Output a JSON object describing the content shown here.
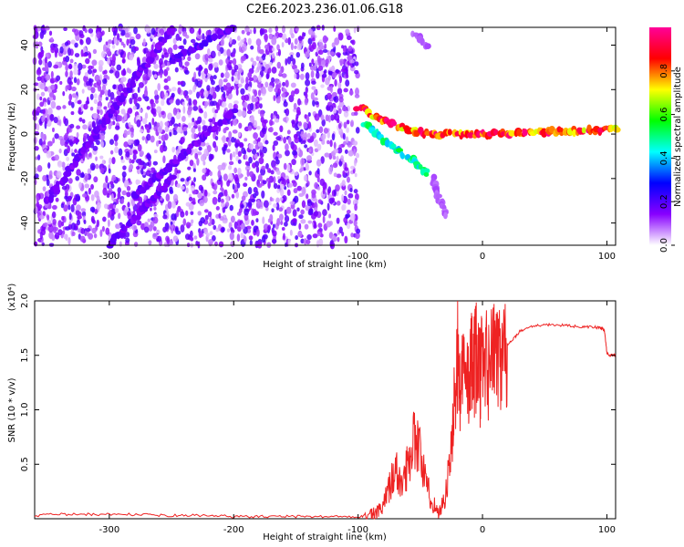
{
  "title": "C2E6.2023.236.01.06.G18",
  "chart_data": [
    {
      "type": "heatmap",
      "xlabel": "Height of straight line (km)",
      "ylabel": "Frequency (Hz)",
      "xlim": [
        -360,
        107
      ],
      "ylim": [
        -50,
        48
      ],
      "x_ticks": [
        -300,
        -200,
        -100,
        0,
        100
      ],
      "y_ticks": [
        40,
        20,
        0,
        -20,
        -40
      ],
      "x_tick_labels": [
        "-300",
        "-200",
        "-100",
        "0",
        "100"
      ],
      "y_tick_labels": [
        "40",
        "20",
        "0",
        "-20",
        "-40"
      ],
      "colorbar": {
        "label": "Normalized spectral amplitude",
        "range": [
          0,
          1
        ],
        "ticks": [
          0.0,
          0.2,
          0.4,
          0.6,
          0.8
        ],
        "tick_labels": [
          "0.0",
          "0.2",
          "0.4",
          "0.6",
          "0.8"
        ],
        "colors": [
          "#ffffff",
          "#8800ff",
          "#0000ff",
          "#00ffff",
          "#00ff00",
          "#ffff00",
          "#ff0000",
          "#ff0099"
        ]
      },
      "noise_region": {
        "x_range": [
          -360,
          -100
        ],
        "y_range": [
          -50,
          48
        ],
        "level": 0.15
      },
      "features": [
        {
          "name": "diagonal streak",
          "points": [
            [
              -350,
              -30
            ],
            [
              -250,
              47
            ]
          ],
          "level": 0.18
        },
        {
          "name": "diagonal streak",
          "points": [
            [
              -280,
              -28
            ],
            [
              -200,
              10
            ]
          ],
          "level": 0.18
        },
        {
          "name": "diagonal streak",
          "points": [
            [
              -250,
              33
            ],
            [
              -200,
              48
            ]
          ],
          "level": 0.2
        },
        {
          "name": "diagonal streak",
          "points": [
            [
              -300,
              -50
            ],
            [
              -250,
              -20
            ]
          ],
          "level": 0.18
        },
        {
          "name": "signal track",
          "points": [
            [
              -100,
              12
            ],
            [
              -80,
              6
            ],
            [
              -60,
              2
            ],
            [
              -40,
              0
            ],
            [
              -20,
              0
            ],
            [
              0,
              0
            ],
            [
              50,
              1
            ],
            [
              107,
              2
            ]
          ],
          "level": 0.9
        },
        {
          "name": "signal branch",
          "points": [
            [
              -95,
              5
            ],
            [
              -75,
              -5
            ],
            [
              -55,
              -12
            ],
            [
              -45,
              -18
            ]
          ],
          "level": 0.5
        },
        {
          "name": "faint branch",
          "points": [
            [
              -55,
              45
            ],
            [
              -45,
              40
            ]
          ],
          "level": 0.1
        },
        {
          "name": "faint branch",
          "points": [
            [
              -40,
              -20
            ],
            [
              -30,
              -37
            ]
          ],
          "level": 0.1
        }
      ]
    },
    {
      "type": "line",
      "xlabel": "Height of straight line (km)",
      "ylabel": "SNR (10 * v/v)",
      "y_multiplier": "(x10⁴)",
      "xlim": [
        -360,
        107
      ],
      "ylim": [
        0,
        2.0
      ],
      "x_ticks": [
        -300,
        -200,
        -100,
        0,
        100
      ],
      "y_ticks": [
        0.5,
        1.0,
        1.5,
        2.0
      ],
      "x_tick_labels": [
        "-300",
        "-200",
        "-100",
        "0",
        "100"
      ],
      "y_tick_labels": [
        "0.5",
        "1.0",
        "1.5",
        "2.0"
      ],
      "color": "#ee2222",
      "series": [
        {
          "x": [
            -360,
            -340,
            -320,
            -300,
            -280,
            -260,
            -240,
            -220,
            -200,
            -180,
            -160,
            -140,
            -120,
            -100,
            -90,
            -85,
            -80,
            -75,
            -70,
            -65,
            -60,
            -55,
            -50,
            -45,
            -40,
            -35,
            -30,
            -25,
            -22,
            -20,
            -18,
            -15,
            -12,
            -10,
            -8,
            -5,
            -2,
            0,
            5,
            10,
            15,
            20,
            25,
            30,
            40,
            50,
            60,
            70,
            80,
            90,
            95,
            98,
            100,
            103,
            107
          ],
          "y": [
            0.03,
            0.04,
            0.04,
            0.04,
            0.04,
            0.03,
            0.03,
            0.03,
            0.02,
            0.02,
            0.02,
            0.02,
            0.02,
            0.02,
            0.03,
            0.05,
            0.1,
            0.3,
            0.45,
            0.3,
            0.5,
            0.8,
            0.6,
            0.3,
            0.15,
            0.05,
            0.2,
            0.6,
            1.2,
            1.6,
            1.1,
            1.4,
            1.2,
            1.5,
            1.3,
            1.45,
            1.35,
            1.4,
            1.45,
            1.5,
            1.55,
            1.6,
            1.65,
            1.72,
            1.77,
            1.78,
            1.78,
            1.77,
            1.76,
            1.76,
            1.75,
            1.73,
            1.52,
            1.5,
            1.5
          ]
        }
      ]
    }
  ]
}
